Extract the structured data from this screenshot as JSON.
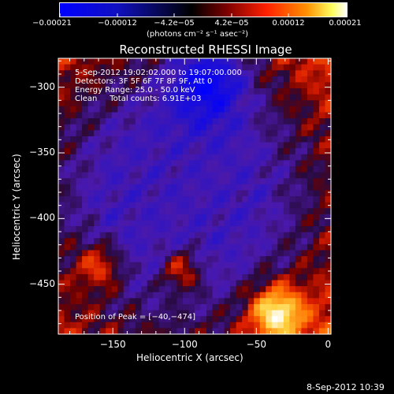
{
  "colorbar": {
    "ticks": [
      "−0.00021",
      "−0.00012",
      "−4.2e−05",
      "4.2e−05",
      "0.00012",
      "0.00021"
    ],
    "unit_label": "(photons cm⁻² s⁻¹ asec⁻²)",
    "stops": [
      "#0000ff",
      "#000000",
      "#ff0000",
      "#ffa500",
      "#ffffff"
    ]
  },
  "chart_data": {
    "type": "heatmap",
    "title": "Reconstructed RHESSI Image",
    "xlabel": "Heliocentric X (arcsec)",
    "ylabel": "Heliocentric Y (arcsec)",
    "xlim": [
      -188,
      2
    ],
    "ylim": [
      -488,
      -278
    ],
    "x_ticks": [
      -150,
      -100,
      -50,
      0
    ],
    "y_ticks": [
      -300,
      -350,
      -400,
      -450
    ],
    "x_tick_labels": [
      "−150",
      "−100",
      "−50",
      "0"
    ],
    "y_tick_labels": [
      "−300",
      "−350",
      "−400",
      "−450"
    ],
    "colormap": "blue-black-red-yellow-white",
    "peak": {
      "x": -40,
      "y": -474
    },
    "annotations": {
      "time": "5-Sep-2012 19:02:02.000 to 19:07:00.000",
      "detectors": "Detectors: 3F 5F 6F 7F 8F 9F, Att 0",
      "energy": "Energy Range: 25.0 - 50.0 keV",
      "clean": "Clean     Total counts: 6.91E+03",
      "peak_text": "Position of Peak = [−40,−474]"
    }
  },
  "footer": {
    "timestamp": "8-Sep-2012 10:39"
  }
}
